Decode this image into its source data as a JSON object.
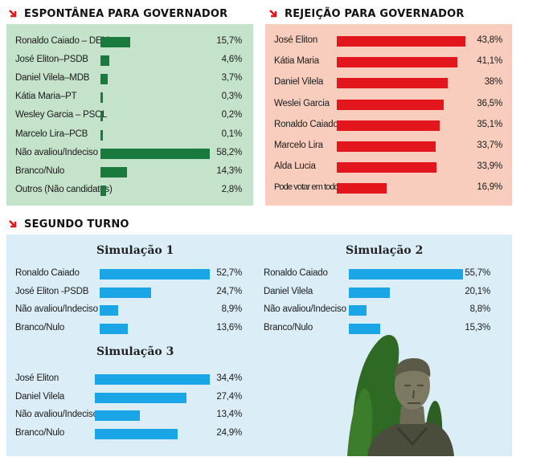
{
  "colors": {
    "green": "#1a7a3e",
    "red": "#e3161d",
    "blue": "#1aa6e6"
  },
  "chart_data": [
    {
      "type": "bar",
      "title": "ESPONTÂNEA PARA GOVERNADOR",
      "xlim": [
        0,
        60
      ],
      "rows": [
        {
          "label": "Ronaldo Caiado – DEM",
          "value": 15.7,
          "display": "15,7%"
        },
        {
          "label": "José Eliton–PSDB",
          "value": 4.6,
          "display": "4,6%"
        },
        {
          "label": "Daniel Vilela–MDB",
          "value": 3.7,
          "display": "3,7%"
        },
        {
          "label": "Kátia Maria–PT",
          "value": 0.3,
          "display": "0,3%"
        },
        {
          "label": "Wesley Garcia – PSOL",
          "value": 0.2,
          "display": "0,2%"
        },
        {
          "label": "Marcelo Lira–PCB",
          "value": 0.1,
          "display": "0,1%"
        },
        {
          "label": "Não avaliou/Indeciso",
          "value": 58.2,
          "display": "58,2%"
        },
        {
          "label": "Branco/Nulo",
          "value": 14.3,
          "display": "14,3%"
        },
        {
          "label": "Outros (Não candidatos)",
          "value": 2.8,
          "display": "2,8%"
        }
      ]
    },
    {
      "type": "bar",
      "title": "REJEIÇÃO PARA GOVERNADOR",
      "xlim": [
        0,
        45
      ],
      "rows": [
        {
          "label": "José Eliton",
          "value": 43.8,
          "display": "43,8%"
        },
        {
          "label": "Kátia Maria",
          "value": 41.1,
          "display": "41,1%"
        },
        {
          "label": "Daniel Vilela",
          "value": 38,
          "display": "38%"
        },
        {
          "label": "Weslei Garcia",
          "value": 36.5,
          "display": "36,5%"
        },
        {
          "label": "Ronaldo Caiado",
          "value": 35.1,
          "display": "35,1%"
        },
        {
          "label": "Marcelo Lira",
          "value": 33.7,
          "display": "33,7%"
        },
        {
          "label": "Alda Lucia",
          "value": 33.9,
          "display": "33,9%"
        },
        {
          "label": "Pode votar em todos",
          "value": 16.9,
          "display": "16,9%"
        }
      ]
    },
    {
      "type": "bar",
      "title": "Simulação 1",
      "xlim": [
        0,
        55
      ],
      "rows": [
        {
          "label": "Ronaldo Caiado",
          "value": 52.7,
          "display": "52,7%"
        },
        {
          "label": "José Eliton -PSDB",
          "value": 24.7,
          "display": "24,7%"
        },
        {
          "label": "Não avaliou/Indeciso",
          "value": 8.9,
          "display": "8,9%"
        },
        {
          "label": "Branco/Nulo",
          "value": 13.6,
          "display": "13,6%"
        }
      ]
    },
    {
      "type": "bar",
      "title": "Simulação 2",
      "xlim": [
        0,
        55
      ],
      "rows": [
        {
          "label": "Ronaldo Caiado",
          "value": 55.7,
          "display": "55,7%"
        },
        {
          "label": "Daniel Vilela",
          "value": 20.1,
          "display": "20,1%"
        },
        {
          "label": "Não avaliou/Indeciso",
          "value": 8.8,
          "display": "8,8%"
        },
        {
          "label": "Branco/Nulo",
          "value": 15.3,
          "display": "15,3%"
        }
      ]
    },
    {
      "type": "bar",
      "title": "Simulação 3",
      "xlim": [
        0,
        35
      ],
      "rows": [
        {
          "label": "José Eliton",
          "value": 34.4,
          "display": "34,4%"
        },
        {
          "label": "Daniel Vilela",
          "value": 27.4,
          "display": "27,4%"
        },
        {
          "label": "Não avaliou/Indeciso",
          "value": 13.4,
          "display": "13,4%"
        },
        {
          "label": "Branco/Nulo",
          "value": 24.9,
          "display": "24,9%"
        }
      ]
    }
  ],
  "segundo_turno": {
    "title": "SEGUNDO TURNO"
  }
}
